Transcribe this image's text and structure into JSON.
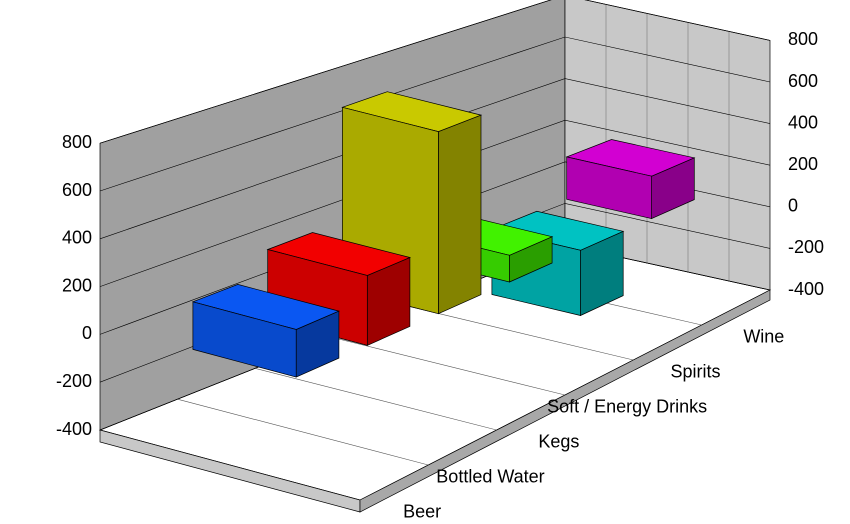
{
  "chart_data": {
    "type": "bar3d",
    "categories": [
      "Beer",
      "Bottled Water",
      "Kegs",
      "Soft / Energy Drinks",
      "Spirits",
      "Wine"
    ],
    "values": [
      200,
      300,
      800,
      120,
      -300,
      200
    ],
    "colors": [
      "#0a5cff",
      "#ff0000",
      "#d4d400",
      "#44ff00",
      "#00cccc",
      "#dd00dd"
    ],
    "ylim": [
      -400,
      800
    ],
    "yticks": [
      -400,
      -200,
      0,
      200,
      400,
      600,
      800
    ],
    "grid": true
  }
}
